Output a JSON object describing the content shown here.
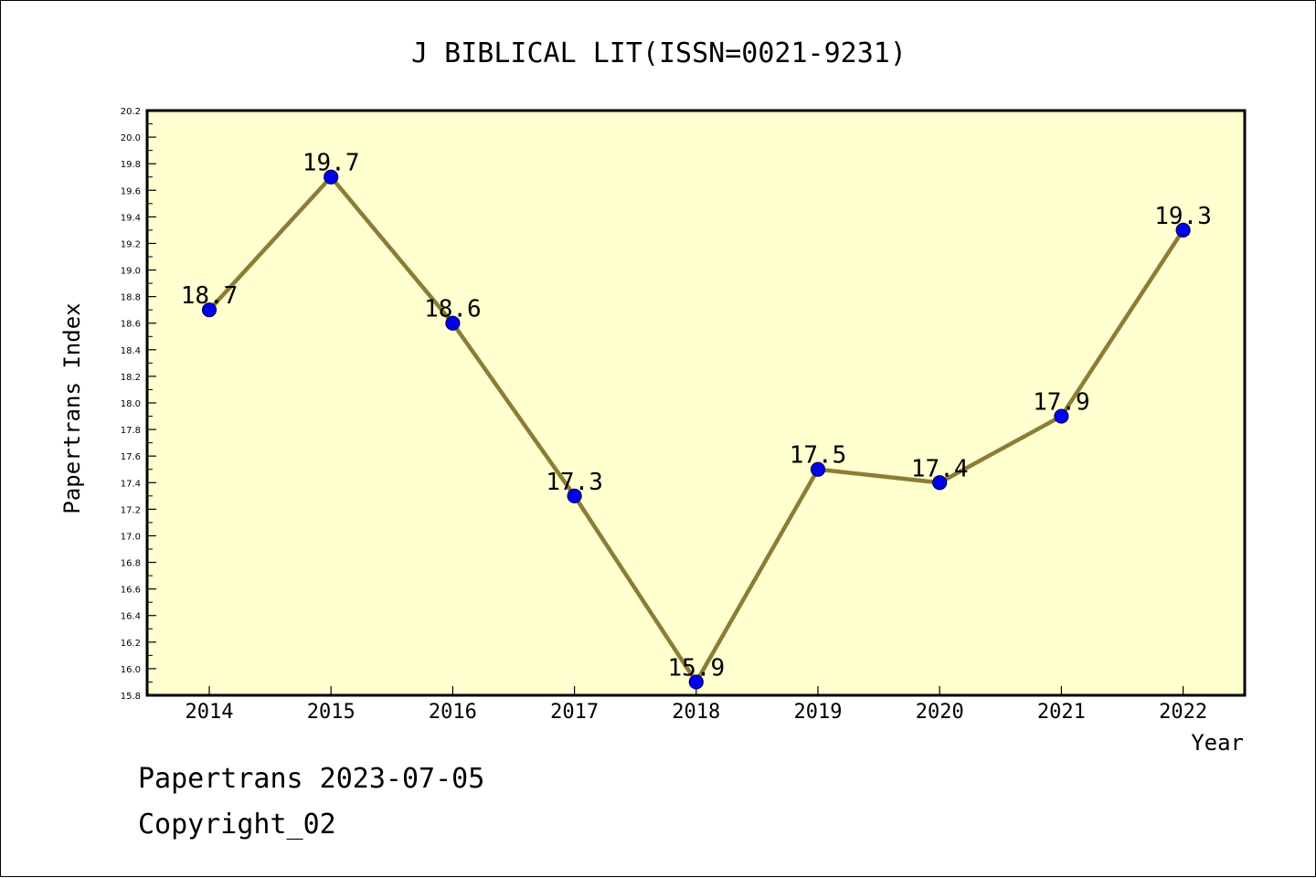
{
  "chart_data": {
    "type": "line",
    "title": "J BIBLICAL LIT(ISSN=0021-9231)",
    "xlabel": "Year",
    "ylabel": "Papertrans Index",
    "categories": [
      "2014",
      "2015",
      "2016",
      "2017",
      "2018",
      "2019",
      "2020",
      "2021",
      "2022"
    ],
    "series": [
      {
        "values": [
          18.7,
          19.7,
          18.6,
          17.3,
          15.9,
          17.5,
          17.4,
          17.9,
          19.3
        ],
        "data_labels": [
          "18.7",
          "19.7",
          "18.6",
          "17.3",
          "15.9",
          "17.5",
          "17.4",
          "17.9",
          "19.3"
        ]
      }
    ],
    "ylim": [
      15.8,
      20.2
    ],
    "y_ticks": [
      "15.8",
      "16.0",
      "16.2",
      "16.4",
      "16.6",
      "16.8",
      "17.0",
      "17.2",
      "17.4",
      "17.6",
      "17.8",
      "18.0",
      "18.2",
      "18.4",
      "18.6",
      "18.8",
      "19.0",
      "19.2",
      "19.4",
      "19.6",
      "19.8",
      "20.0",
      "20.2"
    ],
    "grid": false,
    "legend": "none",
    "colors": {
      "plot_background": "#ffffd0",
      "line": "#8b7d35",
      "marker": "#0000ee",
      "marker_edge": "#000060",
      "axes": "#000000"
    }
  },
  "footer": {
    "line1": "Papertrans 2023-07-05",
    "line2": "Copyright_02"
  }
}
